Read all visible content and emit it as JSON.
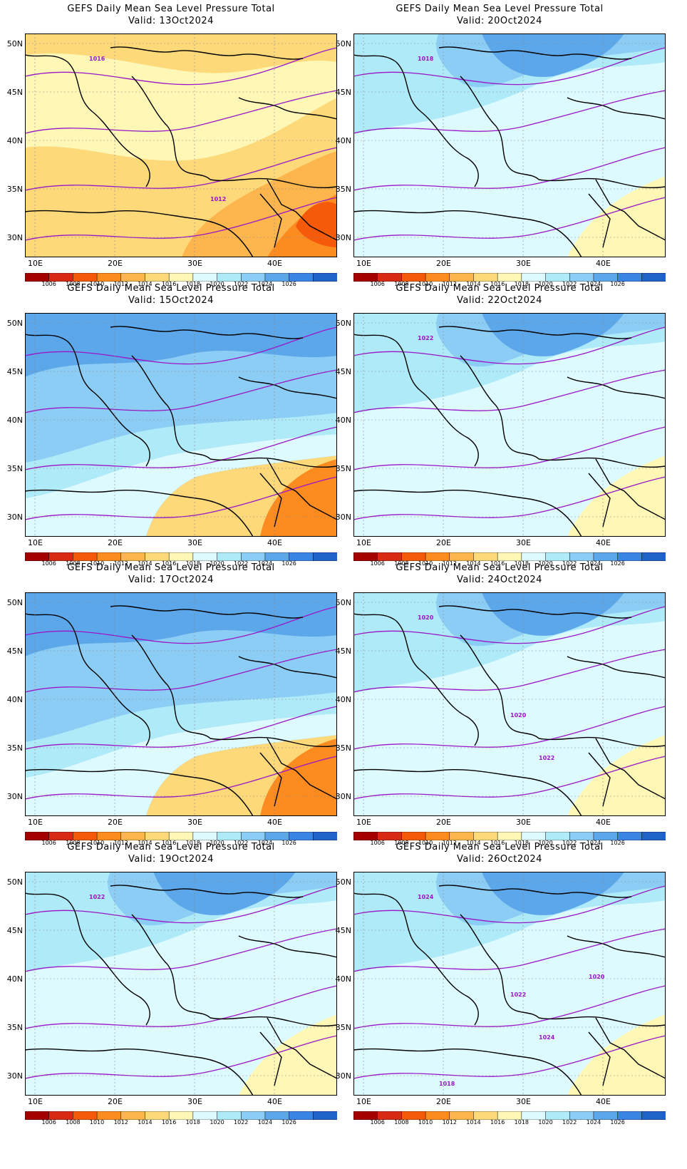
{
  "title": "GEFS Daily Mean Sea Level Pressure Total",
  "lat_labels": [
    "50N",
    "45N",
    "40N",
    "35N",
    "30N"
  ],
  "lon_labels": [
    "10E",
    "20E",
    "30E",
    "40E"
  ],
  "colorbar": {
    "levels": [
      "1006",
      "1008",
      "1010",
      "1012",
      "1014",
      "1016",
      "1018",
      "1020",
      "1022",
      "1024",
      "1026"
    ],
    "colors": [
      "#a50000",
      "#d62a12",
      "#f55a0a",
      "#fc8c20",
      "#fdb54d",
      "#fed97a",
      "#fff7b6",
      "#ddfaff",
      "#aeeaf7",
      "#8ccdf5",
      "#5ca6ea",
      "#3a84e4",
      "#1f63c8"
    ]
  },
  "contour_color": "#9a16c8",
  "panels": [
    {
      "valid": "Valid: 13Oct2024",
      "labels": [
        "1016",
        "1012"
      ],
      "palette": "warm"
    },
    {
      "valid": "Valid: 20Oct2024",
      "labels": [
        "1018"
      ],
      "palette": "cool"
    },
    {
      "valid": "Valid: 15Oct2024",
      "labels": [],
      "palette": "mixed"
    },
    {
      "valid": "Valid: 22Oct2024",
      "labels": [
        "1022"
      ],
      "palette": "cool"
    },
    {
      "valid": "Valid: 17Oct2024",
      "labels": [],
      "palette": "mixed"
    },
    {
      "valid": "Valid: 24Oct2024",
      "labels": [
        "1020",
        "1022",
        "1020"
      ],
      "palette": "cool"
    },
    {
      "valid": "Valid: 19Oct2024",
      "labels": [
        "1022"
      ],
      "palette": "cool"
    },
    {
      "valid": "Valid: 26Oct2024",
      "labels": [
        "1024",
        "1024",
        "1022",
        "1020",
        "1018"
      ],
      "palette": "cool"
    }
  ]
}
